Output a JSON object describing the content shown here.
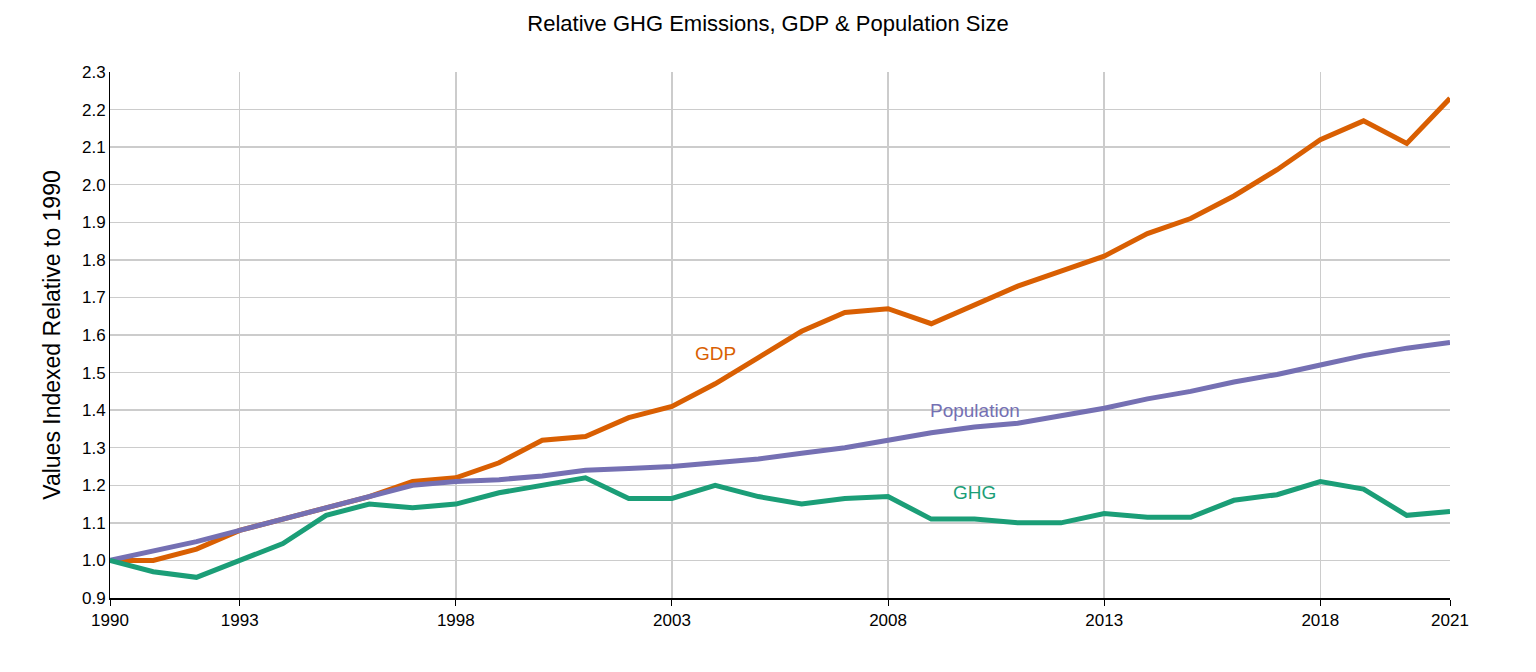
{
  "chart_data": {
    "type": "line",
    "title": "Relative GHG Emissions, GDP & Population Size",
    "y_label": "Values Indexed Relative to 1990",
    "x": [
      1990,
      1991,
      1992,
      1993,
      1994,
      1995,
      1996,
      1997,
      1998,
      1999,
      2000,
      2001,
      2002,
      2003,
      2004,
      2005,
      2006,
      2007,
      2008,
      2009,
      2010,
      2011,
      2012,
      2013,
      2014,
      2015,
      2016,
      2017,
      2018,
      2019,
      2020,
      2021
    ],
    "series": [
      {
        "name": "GDP",
        "color": "#d95f02",
        "values": [
          1.0,
          1.0,
          1.03,
          1.08,
          1.11,
          1.14,
          1.17,
          1.21,
          1.22,
          1.26,
          1.32,
          1.33,
          1.38,
          1.41,
          1.47,
          1.54,
          1.61,
          1.66,
          1.67,
          1.63,
          1.68,
          1.73,
          1.77,
          1.81,
          1.87,
          1.91,
          1.97,
          2.04,
          2.12,
          2.17,
          2.11,
          2.23
        ]
      },
      {
        "name": "Population",
        "color": "#7570b3",
        "values": [
          1.0,
          1.025,
          1.05,
          1.08,
          1.11,
          1.14,
          1.17,
          1.2,
          1.21,
          1.215,
          1.225,
          1.24,
          1.245,
          1.25,
          1.26,
          1.27,
          1.285,
          1.3,
          1.32,
          1.34,
          1.355,
          1.365,
          1.385,
          1.405,
          1.43,
          1.45,
          1.475,
          1.495,
          1.52,
          1.545,
          1.565,
          1.58
        ]
      },
      {
        "name": "GHG",
        "color": "#1b9e77",
        "values": [
          1.0,
          0.97,
          0.955,
          1.0,
          1.045,
          1.12,
          1.15,
          1.14,
          1.15,
          1.18,
          1.2,
          1.22,
          1.165,
          1.165,
          1.2,
          1.17,
          1.15,
          1.165,
          1.17,
          1.11,
          1.11,
          1.1,
          1.1,
          1.125,
          1.115,
          1.115,
          1.16,
          1.175,
          1.21,
          1.19,
          1.12,
          1.13
        ]
      }
    ],
    "annotations": [
      {
        "text": "GDP",
        "x": 2004,
        "y": 1.55
      },
      {
        "text": "Population",
        "x": 2010,
        "y": 1.4
      },
      {
        "text": "GHG",
        "x": 2010,
        "y": 1.18
      }
    ],
    "xlim": [
      1990,
      2021
    ],
    "xticks": [
      1990,
      1993,
      1998,
      2003,
      2008,
      2013,
      2018,
      2021
    ],
    "ylim": [
      0.9,
      2.3
    ],
    "yticks": [
      0.9,
      {
        "value": 1,
        "label": "1.0"
      },
      1.1,
      1.2,
      1.3,
      1.4,
      1.5,
      1.6,
      1.7,
      1.8,
      1.9,
      {
        "value": 2,
        "label": "2.0"
      },
      2.1,
      2.2,
      2.3
    ],
    "grid": true
  }
}
